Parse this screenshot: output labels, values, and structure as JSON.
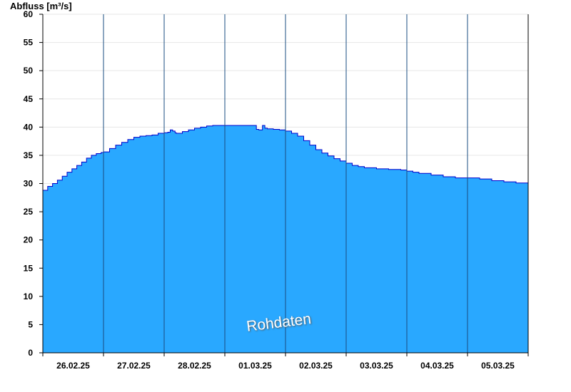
{
  "chart_data": {
    "type": "area",
    "title": "",
    "xlabel": "",
    "ylabel": "Abfluss [m³/s]",
    "ylim": [
      0,
      60
    ],
    "yticks": [
      "0",
      "5",
      "10",
      "15",
      "20",
      "25",
      "30",
      "35",
      "40",
      "45",
      "50",
      "55",
      "60"
    ],
    "xticks": [
      "26.02.25",
      "27.02.25",
      "28.02.25",
      "01.03.25",
      "02.03.25",
      "03.03.25",
      "04.03.25",
      "05.03.25"
    ],
    "grid": true,
    "legend": "none",
    "fill_color": "#29A8FF",
    "line_color": "#0000CC",
    "watermark": "Rohdaten",
    "series": [
      {
        "x": [
          0,
          0.08,
          0.16,
          0.24,
          0.32,
          0.4,
          0.48,
          0.56,
          0.64,
          0.72,
          0.8,
          0.88,
          0.96,
          1.0,
          1.1,
          1.2,
          1.3,
          1.4,
          1.5,
          1.6,
          1.7,
          1.8,
          1.9,
          2.0,
          2.06,
          2.1,
          2.14,
          2.18,
          2.2,
          2.3,
          2.4,
          2.5,
          2.6,
          2.7,
          2.8,
          2.9,
          3.0,
          3.1,
          3.2,
          3.3,
          3.4,
          3.48,
          3.52,
          3.56,
          3.62,
          3.66,
          3.7,
          3.8,
          3.9,
          4.0,
          4.1,
          4.2,
          4.3,
          4.4,
          4.5,
          4.6,
          4.7,
          4.8,
          4.9,
          5.0,
          5.1,
          5.2,
          5.3,
          5.5,
          5.7,
          5.9,
          6.0,
          6.1,
          6.2,
          6.4,
          6.6,
          6.8,
          7.0,
          7.2,
          7.4,
          7.6,
          7.8,
          8.0
        ],
        "y": [
          28.8,
          29.5,
          30.0,
          30.6,
          31.3,
          32.0,
          32.6,
          33.2,
          33.8,
          34.5,
          35.0,
          35.3,
          35.5,
          35.6,
          36.2,
          36.8,
          37.3,
          37.8,
          38.2,
          38.4,
          38.5,
          38.6,
          38.9,
          39.0,
          39.1,
          39.5,
          39.3,
          39.0,
          38.9,
          39.2,
          39.5,
          39.8,
          40.0,
          40.2,
          40.3,
          40.3,
          40.3,
          40.3,
          40.3,
          40.3,
          40.3,
          40.3,
          39.6,
          39.5,
          40.3,
          39.8,
          39.7,
          39.6,
          39.5,
          39.3,
          38.9,
          38.4,
          37.6,
          36.8,
          36.0,
          35.4,
          34.9,
          34.4,
          34.0,
          33.6,
          33.2,
          33.0,
          32.8,
          32.6,
          32.5,
          32.4,
          32.2,
          32.0,
          31.8,
          31.5,
          31.2,
          31.0,
          31.0,
          30.8,
          30.5,
          30.3,
          30.1,
          30.0
        ]
      }
    ]
  }
}
